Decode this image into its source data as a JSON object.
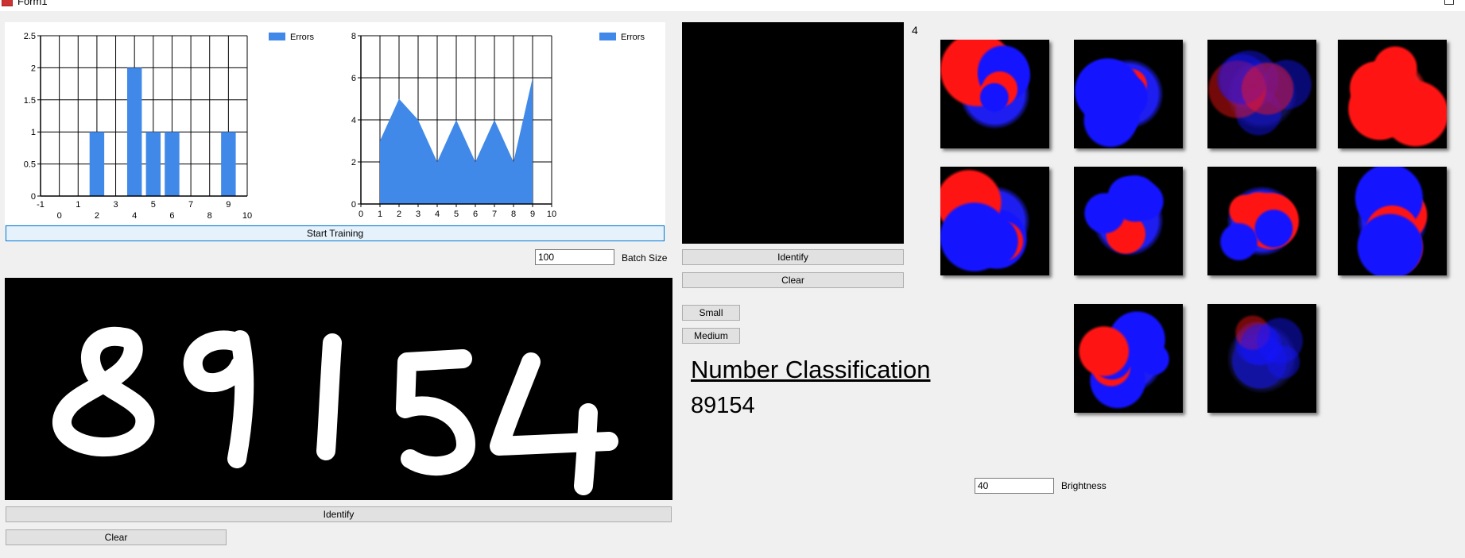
{
  "window": {
    "title": "Form1"
  },
  "charts": {
    "legend_label": "Errors",
    "color": "#4189e8",
    "bar": {
      "type": "bar",
      "series": "Errors",
      "x": [
        2,
        4,
        5,
        6,
        9
      ],
      "values": [
        1,
        2,
        1,
        1,
        1
      ],
      "xlim": [
        -1,
        10
      ],
      "ylim": [
        0,
        2.5
      ],
      "y_ticks": [
        "0",
        "0.5",
        "1",
        "1.5",
        "2",
        "2.5"
      ],
      "x_ticks_upper": [
        "-1",
        "1",
        "3",
        "5",
        "7",
        "9"
      ],
      "x_ticks_lower": [
        "0",
        "2",
        "4",
        "6",
        "8",
        "10"
      ]
    },
    "area": {
      "type": "area",
      "series": "Errors",
      "x": [
        1,
        2,
        3,
        4,
        5,
        6,
        7,
        8,
        9
      ],
      "values": [
        3,
        5,
        4,
        2,
        4,
        2,
        4,
        2,
        6
      ],
      "xlim": [
        0,
        10
      ],
      "ylim": [
        0,
        8
      ],
      "y_ticks": [
        "0",
        "2",
        "4",
        "6",
        "8"
      ],
      "x_ticks": [
        "0",
        "1",
        "2",
        "3",
        "4",
        "5",
        "6",
        "7",
        "8",
        "9",
        "10"
      ]
    }
  },
  "training": {
    "start_label": "Start Training",
    "batch_size_value": "100",
    "batch_size_label": "Batch Size"
  },
  "draw_panel": {
    "handwriting": "89154",
    "identify_label": "Identify",
    "clear_label": "Clear"
  },
  "preview": {
    "count": "4",
    "identify_label": "Identify",
    "clear_label": "Clear",
    "small_label": "Small",
    "medium_label": "Medium"
  },
  "classification": {
    "title": "Number Classification",
    "result": "89154"
  },
  "brightness": {
    "value": "40",
    "label": "Brightness"
  },
  "feature_maps": {
    "count": 10
  }
}
